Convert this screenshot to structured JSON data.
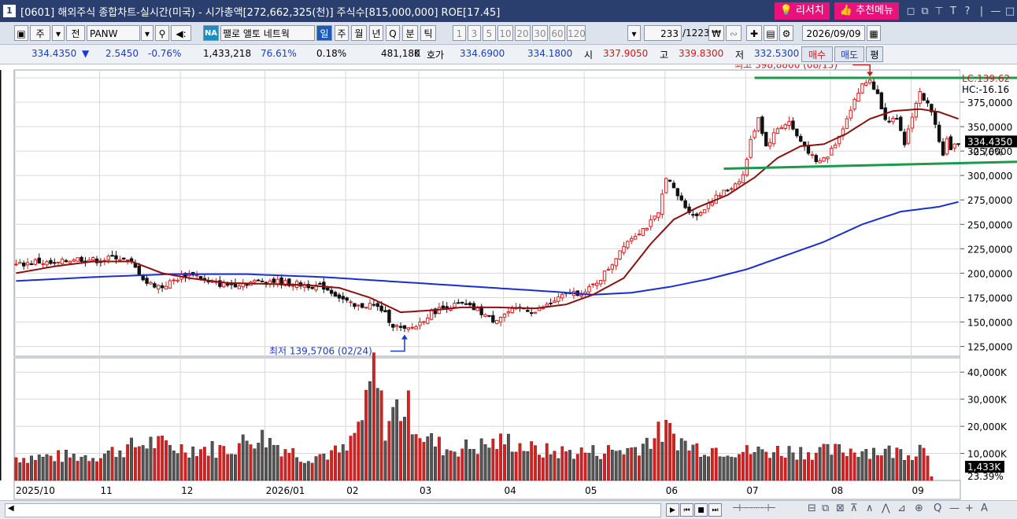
{
  "window": {
    "number": "1",
    "title": "[0601] 해외주식 종합차트-실시간(미국) - 시가총액[272,662,325(천)] 주식수[815,000,000] ROE[17.45]",
    "research_label": "리서치",
    "recommend_label": "추천메뉴",
    "controls": [
      "◻",
      "⧉",
      "⊤",
      "T",
      "?",
      "|",
      "—",
      "□"
    ]
  },
  "toolbar": {
    "mode1": "주",
    "mode2": "전",
    "ticker": "PANW",
    "na_label": "NA",
    "scroll_text": "팰로 앨토 네트웍",
    "periods": [
      "일",
      "주",
      "월",
      "년",
      "Q",
      "분",
      "틱"
    ],
    "active_period": "일",
    "intervals": [
      "1",
      "3",
      "5",
      "10",
      "20",
      "30",
      "60",
      "120"
    ],
    "count": "233",
    "total": "/1223",
    "date": "2026/09/09"
  },
  "quote": {
    "price": "334.4350",
    "change": "2.5450",
    "change_pct": "-0.76%",
    "volume": "1,433,218",
    "vol_ratio": "76.61%",
    "turnover": "0.18%",
    "prev_volume": "481,180",
    "k_label": "K",
    "bid_label": "호가",
    "ask": "334.6900",
    "bid": "334.1800",
    "open_label": "시",
    "open": "337.9050",
    "high_label": "고",
    "high": "339.8300",
    "low_label": "저",
    "low": "332.5300",
    "buy_label": "매수",
    "sell_label": "매도",
    "eval_label": "평"
  },
  "chart_data": {
    "type": "candlestick",
    "price_axis": {
      "ylim": [
        115,
        408
      ],
      "ticks": [
        400,
        375,
        350,
        325,
        300,
        275,
        250,
        225,
        200,
        175,
        150,
        125
      ],
      "tick_labels": [
        "400,0000",
        "375,0000",
        "350,0000",
        "325,0000",
        "300,0000",
        "275,0000",
        "250,0000",
        "225,0000",
        "200,0000",
        "175,0000",
        "150,0000",
        "125,0000"
      ]
    },
    "volume_axis": {
      "ylim": [
        0,
        45000
      ],
      "ticks": [
        40000,
        30000,
        20000,
        10000
      ],
      "tick_labels": [
        "40,000K",
        "30,000K",
        "20,000K",
        "10,000K"
      ]
    },
    "x_labels": [
      {
        "label": "2025/10",
        "index": 0
      },
      {
        "label": "11",
        "index": 22
      },
      {
        "label": "12",
        "index": 43
      },
      {
        "label": "2026/01",
        "index": 65
      },
      {
        "label": "02",
        "index": 86
      },
      {
        "label": "03",
        "index": 105
      },
      {
        "label": "04",
        "index": 127
      },
      {
        "label": "05",
        "index": 148
      },
      {
        "label": "06",
        "index": 169
      },
      {
        "label": "07",
        "index": 190
      },
      {
        "label": "08",
        "index": 212
      },
      {
        "label": "09",
        "index": 233
      }
    ],
    "close_anchors": [
      [
        0,
        208
      ],
      [
        5,
        212
      ],
      [
        10,
        209
      ],
      [
        15,
        215
      ],
      [
        22,
        213
      ],
      [
        26,
        217
      ],
      [
        30,
        210
      ],
      [
        34,
        190
      ],
      [
        38,
        186
      ],
      [
        43,
        197
      ],
      [
        46,
        200
      ],
      [
        50,
        190
      ],
      [
        55,
        188
      ],
      [
        60,
        190
      ],
      [
        65,
        193
      ],
      [
        70,
        190
      ],
      [
        75,
        188
      ],
      [
        80,
        186
      ],
      [
        84,
        176
      ],
      [
        88,
        165
      ],
      [
        92,
        168
      ],
      [
        95,
        163
      ],
      [
        98,
        147
      ],
      [
        101,
        141
      ],
      [
        104,
        146
      ],
      [
        108,
        160
      ],
      [
        112,
        166
      ],
      [
        116,
        168
      ],
      [
        120,
        162
      ],
      [
        124,
        152
      ],
      [
        128,
        160
      ],
      [
        132,
        164
      ],
      [
        135,
        160
      ],
      [
        138,
        167
      ],
      [
        141,
        174
      ],
      [
        144,
        180
      ],
      [
        148,
        180
      ],
      [
        152,
        195
      ],
      [
        155,
        210
      ],
      [
        158,
        230
      ],
      [
        161,
        240
      ],
      [
        164,
        248
      ],
      [
        167,
        260
      ],
      [
        169,
        300
      ],
      [
        171,
        285
      ],
      [
        174,
        268
      ],
      [
        177,
        258
      ],
      [
        180,
        272
      ],
      [
        183,
        280
      ],
      [
        186,
        288
      ],
      [
        189,
        300
      ],
      [
        191,
        335
      ],
      [
        193,
        360
      ],
      [
        195,
        330
      ],
      [
        198,
        348
      ],
      [
        201,
        355
      ],
      [
        203,
        340
      ],
      [
        206,
        325
      ],
      [
        208,
        312
      ],
      [
        211,
        320
      ],
      [
        214,
        340
      ],
      [
        216,
        360
      ],
      [
        218,
        378
      ],
      [
        220,
        392
      ],
      [
        222,
        398
      ],
      [
        224,
        382
      ],
      [
        226,
        360
      ],
      [
        229,
        355
      ],
      [
        231,
        332
      ],
      [
        233,
        362
      ],
      [
        235,
        385
      ],
      [
        237,
        372
      ],
      [
        239,
        355
      ],
      [
        241,
        320
      ],
      [
        242,
        340
      ],
      [
        243,
        325
      ],
      [
        245,
        334.435
      ]
    ],
    "ma_short_anchors": [
      [
        0,
        200
      ],
      [
        10,
        207
      ],
      [
        20,
        212
      ],
      [
        30,
        212
      ],
      [
        38,
        200
      ],
      [
        45,
        195
      ],
      [
        55,
        190
      ],
      [
        65,
        189
      ],
      [
        75,
        188
      ],
      [
        84,
        185
      ],
      [
        92,
        175
      ],
      [
        100,
        160
      ],
      [
        108,
        162
      ],
      [
        116,
        165
      ],
      [
        125,
        165
      ],
      [
        135,
        164
      ],
      [
        143,
        168
      ],
      [
        150,
        178
      ],
      [
        158,
        195
      ],
      [
        165,
        230
      ],
      [
        171,
        255
      ],
      [
        177,
        267
      ],
      [
        185,
        280
      ],
      [
        192,
        298
      ],
      [
        198,
        318
      ],
      [
        204,
        330
      ],
      [
        210,
        332
      ],
      [
        216,
        343
      ],
      [
        222,
        358
      ],
      [
        228,
        366
      ],
      [
        235,
        368
      ],
      [
        240,
        365
      ],
      [
        245,
        358
      ]
    ],
    "ma_long_anchors": [
      [
        0,
        192
      ],
      [
        20,
        196
      ],
      [
        40,
        199
      ],
      [
        60,
        199
      ],
      [
        80,
        196
      ],
      [
        100,
        191
      ],
      [
        120,
        186
      ],
      [
        140,
        181
      ],
      [
        150,
        178
      ],
      [
        160,
        180
      ],
      [
        170,
        186
      ],
      [
        180,
        194
      ],
      [
        190,
        204
      ],
      [
        200,
        218
      ],
      [
        210,
        232
      ],
      [
        220,
        250
      ],
      [
        230,
        263
      ],
      [
        240,
        268
      ],
      [
        245,
        273
      ]
    ],
    "volume_anchors": [
      [
        0,
        8500
      ],
      [
        20,
        9000
      ],
      [
        35,
        14000
      ],
      [
        42,
        12000
      ],
      [
        55,
        11500
      ],
      [
        63,
        16500
      ],
      [
        75,
        8500
      ],
      [
        86,
        11000
      ],
      [
        91,
        26000
      ],
      [
        93,
        41000
      ],
      [
        96,
        20000
      ],
      [
        99,
        27000
      ],
      [
        102,
        26000
      ],
      [
        106,
        16000
      ],
      [
        112,
        11500
      ],
      [
        120,
        12500
      ],
      [
        128,
        14500
      ],
      [
        135,
        11000
      ],
      [
        140,
        10500
      ],
      [
        150,
        10500
      ],
      [
        160,
        11500
      ],
      [
        169,
        18500
      ],
      [
        175,
        12500
      ],
      [
        185,
        11500
      ],
      [
        190,
        10500
      ],
      [
        200,
        11000
      ],
      [
        210,
        10500
      ],
      [
        220,
        11500
      ],
      [
        228,
        10500
      ],
      [
        234,
        10500
      ],
      [
        236,
        14000
      ],
      [
        237,
        12000
      ],
      [
        238,
        1433
      ]
    ],
    "series": [
      {
        "name": "",
        "role": "ma_short"
      },
      {
        "name": "",
        "role": "ma_long"
      }
    ],
    "annotations": {
      "high_text": "최고 398,8800 (08/13)",
      "low_text": "최저 139,5706 (02/24)",
      "lc_text": "LC:139.62",
      "hc_text": "HC:-16.16",
      "last_price": "334.4350",
      "last_pct": "-0.76%",
      "last_volume": "1,433K",
      "vol_pct": "23.39%"
    },
    "trendlines": [
      {
        "from_index": 192,
        "from_value": 400,
        "to_index": 244,
        "to_value": 400
      },
      {
        "from_index": 184,
        "from_value": 307,
        "to_index": 244,
        "to_value": 314
      }
    ],
    "colors": {
      "up": "#d42020",
      "down": "#111111",
      "ma_short": "#8b1010",
      "ma_long": "#1a2ed0",
      "trend": "#1a9a4a",
      "grid": "#d8d8d8"
    }
  },
  "bottom": {
    "scroll_left": "◀",
    "play_buttons": [
      "▶",
      "⏮",
      "■",
      "⏭"
    ],
    "tools": [
      "⊟",
      "⧉",
      "⊠",
      "⊼",
      "∧",
      "⋀",
      "⊿",
      "⊕",
      "Q",
      "—",
      "+",
      "A"
    ]
  }
}
